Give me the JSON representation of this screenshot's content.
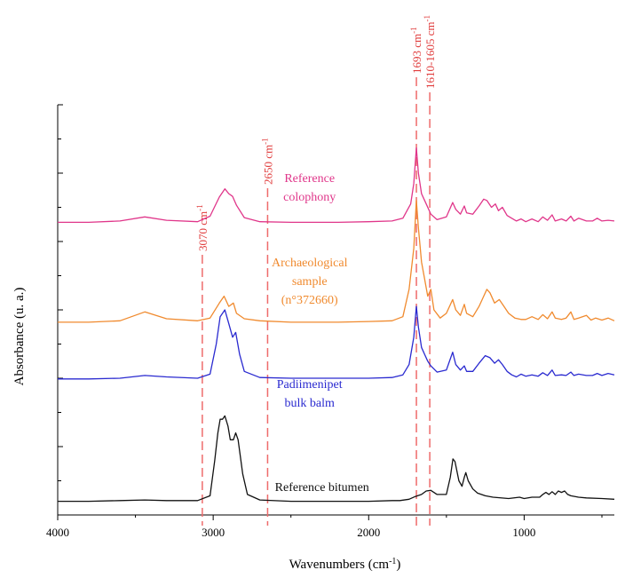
{
  "chart_data": {
    "type": "line",
    "title": "",
    "xlabel_parts": {
      "main": "Wavenumbers (cm",
      "sup": "-1",
      "end": ")"
    },
    "ylabel": "Absorbance (u. a.)",
    "x_reversed": true,
    "xlim": [
      4000,
      420
    ],
    "xticks": [
      4000,
      3000,
      2000,
      1000
    ],
    "xtick_labels": [
      "4000",
      "3000",
      "2000",
      "1000"
    ],
    "ylim": [
      0,
      6
    ],
    "y_tick_count": 13,
    "reference_lines": [
      {
        "x": 3070,
        "label": "3070 cm",
        "sup": "-1"
      },
      {
        "x": 2650,
        "label": "2650 cm",
        "sup": "-1"
      },
      {
        "x": 1693,
        "label": "1693 cm",
        "sup": "-1"
      },
      {
        "x": 1607,
        "label": "1610-1605 cm",
        "sup": "-1"
      }
    ],
    "series": [
      {
        "label_lines": [
          "Reference",
          "colophony"
        ],
        "color": "#e0368a",
        "label_x": 2380,
        "points": [
          [
            4000,
            4.28
          ],
          [
            3800,
            4.28
          ],
          [
            3600,
            4.3
          ],
          [
            3440,
            4.36
          ],
          [
            3300,
            4.31
          ],
          [
            3100,
            4.29
          ],
          [
            3020,
            4.37
          ],
          [
            2960,
            4.65
          ],
          [
            2925,
            4.77
          ],
          [
            2900,
            4.7
          ],
          [
            2875,
            4.66
          ],
          [
            2850,
            4.53
          ],
          [
            2800,
            4.35
          ],
          [
            2700,
            4.29
          ],
          [
            2500,
            4.28
          ],
          [
            2200,
            4.28
          ],
          [
            2000,
            4.29
          ],
          [
            1850,
            4.3
          ],
          [
            1780,
            4.34
          ],
          [
            1730,
            4.55
          ],
          [
            1710,
            4.85
          ],
          [
            1693,
            5.37
          ],
          [
            1680,
            5.0
          ],
          [
            1660,
            4.7
          ],
          [
            1630,
            4.55
          ],
          [
            1600,
            4.4
          ],
          [
            1560,
            4.32
          ],
          [
            1500,
            4.36
          ],
          [
            1460,
            4.57
          ],
          [
            1440,
            4.47
          ],
          [
            1410,
            4.4
          ],
          [
            1385,
            4.52
          ],
          [
            1370,
            4.42
          ],
          [
            1330,
            4.4
          ],
          [
            1290,
            4.52
          ],
          [
            1260,
            4.62
          ],
          [
            1240,
            4.6
          ],
          [
            1210,
            4.5
          ],
          [
            1185,
            4.55
          ],
          [
            1165,
            4.45
          ],
          [
            1140,
            4.5
          ],
          [
            1110,
            4.38
          ],
          [
            1080,
            4.34
          ],
          [
            1050,
            4.3
          ],
          [
            1020,
            4.33
          ],
          [
            990,
            4.29
          ],
          [
            950,
            4.33
          ],
          [
            910,
            4.29
          ],
          [
            880,
            4.36
          ],
          [
            850,
            4.31
          ],
          [
            820,
            4.39
          ],
          [
            800,
            4.3
          ],
          [
            760,
            4.33
          ],
          [
            730,
            4.3
          ],
          [
            700,
            4.37
          ],
          [
            680,
            4.3
          ],
          [
            650,
            4.34
          ],
          [
            600,
            4.3
          ],
          [
            560,
            4.3
          ],
          [
            530,
            4.34
          ],
          [
            500,
            4.3
          ],
          [
            460,
            4.31
          ],
          [
            420,
            4.3
          ]
        ]
      },
      {
        "label_lines": [
          "Archaeological",
          "sample",
          "(n°372660)"
        ],
        "color": "#f08a2e",
        "label_x": 2380,
        "points": [
          [
            4000,
            2.82
          ],
          [
            3800,
            2.82
          ],
          [
            3600,
            2.84
          ],
          [
            3440,
            2.97
          ],
          [
            3300,
            2.87
          ],
          [
            3100,
            2.84
          ],
          [
            3020,
            2.88
          ],
          [
            2960,
            3.1
          ],
          [
            2930,
            3.2
          ],
          [
            2900,
            3.05
          ],
          [
            2870,
            3.1
          ],
          [
            2850,
            2.95
          ],
          [
            2800,
            2.87
          ],
          [
            2700,
            2.84
          ],
          [
            2500,
            2.82
          ],
          [
            2200,
            2.82
          ],
          [
            2000,
            2.83
          ],
          [
            1850,
            2.84
          ],
          [
            1780,
            2.9
          ],
          [
            1740,
            3.3
          ],
          [
            1710,
            3.9
          ],
          [
            1693,
            4.6
          ],
          [
            1680,
            4.2
          ],
          [
            1660,
            3.7
          ],
          [
            1640,
            3.45
          ],
          [
            1620,
            3.2
          ],
          [
            1600,
            3.3
          ],
          [
            1580,
            3.0
          ],
          [
            1540,
            2.88
          ],
          [
            1500,
            2.95
          ],
          [
            1460,
            3.15
          ],
          [
            1440,
            3.0
          ],
          [
            1410,
            2.92
          ],
          [
            1385,
            3.08
          ],
          [
            1370,
            2.95
          ],
          [
            1330,
            2.9
          ],
          [
            1290,
            3.05
          ],
          [
            1240,
            3.3
          ],
          [
            1220,
            3.25
          ],
          [
            1190,
            3.1
          ],
          [
            1160,
            3.15
          ],
          [
            1130,
            3.05
          ],
          [
            1100,
            2.95
          ],
          [
            1060,
            2.88
          ],
          [
            1020,
            2.86
          ],
          [
            990,
            2.86
          ],
          [
            950,
            2.9
          ],
          [
            910,
            2.86
          ],
          [
            880,
            2.93
          ],
          [
            850,
            2.87
          ],
          [
            820,
            2.97
          ],
          [
            800,
            2.88
          ],
          [
            760,
            2.86
          ],
          [
            730,
            2.88
          ],
          [
            700,
            2.97
          ],
          [
            680,
            2.86
          ],
          [
            650,
            2.88
          ],
          [
            600,
            2.92
          ],
          [
            570,
            2.85
          ],
          [
            540,
            2.88
          ],
          [
            500,
            2.85
          ],
          [
            460,
            2.88
          ],
          [
            420,
            2.84
          ]
        ]
      },
      {
        "label_lines": [
          "Padiimenipet",
          "bulk balm"
        ],
        "color": "#2a2ad0",
        "label_x": 2380,
        "points": [
          [
            4000,
            1.99
          ],
          [
            3800,
            1.99
          ],
          [
            3600,
            2.0
          ],
          [
            3440,
            2.04
          ],
          [
            3300,
            2.02
          ],
          [
            3100,
            2.0
          ],
          [
            3020,
            2.06
          ],
          [
            2980,
            2.5
          ],
          [
            2955,
            2.9
          ],
          [
            2925,
            3.0
          ],
          [
            2900,
            2.8
          ],
          [
            2875,
            2.6
          ],
          [
            2855,
            2.67
          ],
          [
            2830,
            2.35
          ],
          [
            2800,
            2.1
          ],
          [
            2700,
            2.01
          ],
          [
            2500,
            2.0
          ],
          [
            2200,
            2.0
          ],
          [
            2000,
            2.0
          ],
          [
            1850,
            2.01
          ],
          [
            1780,
            2.05
          ],
          [
            1740,
            2.2
          ],
          [
            1710,
            2.6
          ],
          [
            1693,
            3.05
          ],
          [
            1680,
            2.75
          ],
          [
            1660,
            2.45
          ],
          [
            1640,
            2.35
          ],
          [
            1620,
            2.25
          ],
          [
            1600,
            2.18
          ],
          [
            1560,
            2.09
          ],
          [
            1500,
            2.12
          ],
          [
            1460,
            2.38
          ],
          [
            1440,
            2.2
          ],
          [
            1410,
            2.12
          ],
          [
            1385,
            2.18
          ],
          [
            1370,
            2.1
          ],
          [
            1330,
            2.1
          ],
          [
            1290,
            2.22
          ],
          [
            1250,
            2.33
          ],
          [
            1220,
            2.3
          ],
          [
            1190,
            2.22
          ],
          [
            1165,
            2.27
          ],
          [
            1140,
            2.2
          ],
          [
            1110,
            2.1
          ],
          [
            1080,
            2.05
          ],
          [
            1050,
            2.02
          ],
          [
            1020,
            2.06
          ],
          [
            990,
            2.03
          ],
          [
            950,
            2.05
          ],
          [
            910,
            2.03
          ],
          [
            880,
            2.08
          ],
          [
            850,
            2.04
          ],
          [
            820,
            2.12
          ],
          [
            800,
            2.04
          ],
          [
            760,
            2.05
          ],
          [
            730,
            2.04
          ],
          [
            700,
            2.09
          ],
          [
            680,
            2.04
          ],
          [
            650,
            2.06
          ],
          [
            600,
            2.04
          ],
          [
            560,
            2.04
          ],
          [
            530,
            2.07
          ],
          [
            500,
            2.04
          ],
          [
            460,
            2.07
          ],
          [
            420,
            2.05
          ]
        ]
      },
      {
        "label_lines": [
          "Reference bitumen"
        ],
        "color": "#111111",
        "label_x": 2300,
        "points": [
          [
            4000,
            0.2
          ],
          [
            3800,
            0.2
          ],
          [
            3600,
            0.21
          ],
          [
            3440,
            0.22
          ],
          [
            3300,
            0.21
          ],
          [
            3100,
            0.21
          ],
          [
            3020,
            0.28
          ],
          [
            2990,
            0.8
          ],
          [
            2970,
            1.2
          ],
          [
            2955,
            1.4
          ],
          [
            2940,
            1.4
          ],
          [
            2925,
            1.45
          ],
          [
            2905,
            1.3
          ],
          [
            2890,
            1.1
          ],
          [
            2870,
            1.1
          ],
          [
            2855,
            1.2
          ],
          [
            2840,
            1.1
          ],
          [
            2810,
            0.6
          ],
          [
            2780,
            0.3
          ],
          [
            2700,
            0.22
          ],
          [
            2500,
            0.2
          ],
          [
            2300,
            0.2
          ],
          [
            2000,
            0.2
          ],
          [
            1850,
            0.21
          ],
          [
            1800,
            0.21
          ],
          [
            1740,
            0.23
          ],
          [
            1700,
            0.27
          ],
          [
            1660,
            0.3
          ],
          [
            1630,
            0.35
          ],
          [
            1600,
            0.36
          ],
          [
            1560,
            0.3
          ],
          [
            1500,
            0.3
          ],
          [
            1475,
            0.55
          ],
          [
            1458,
            0.82
          ],
          [
            1445,
            0.78
          ],
          [
            1420,
            0.5
          ],
          [
            1400,
            0.42
          ],
          [
            1385,
            0.55
          ],
          [
            1375,
            0.62
          ],
          [
            1360,
            0.5
          ],
          [
            1330,
            0.38
          ],
          [
            1300,
            0.32
          ],
          [
            1250,
            0.28
          ],
          [
            1200,
            0.26
          ],
          [
            1100,
            0.24
          ],
          [
            1030,
            0.26
          ],
          [
            1000,
            0.24
          ],
          [
            950,
            0.26
          ],
          [
            900,
            0.26
          ],
          [
            880,
            0.3
          ],
          [
            860,
            0.33
          ],
          [
            840,
            0.3
          ],
          [
            820,
            0.34
          ],
          [
            800,
            0.3
          ],
          [
            780,
            0.35
          ],
          [
            760,
            0.33
          ],
          [
            740,
            0.35
          ],
          [
            720,
            0.3
          ],
          [
            700,
            0.28
          ],
          [
            650,
            0.26
          ],
          [
            600,
            0.25
          ],
          [
            500,
            0.24
          ],
          [
            420,
            0.23
          ]
        ]
      }
    ]
  }
}
